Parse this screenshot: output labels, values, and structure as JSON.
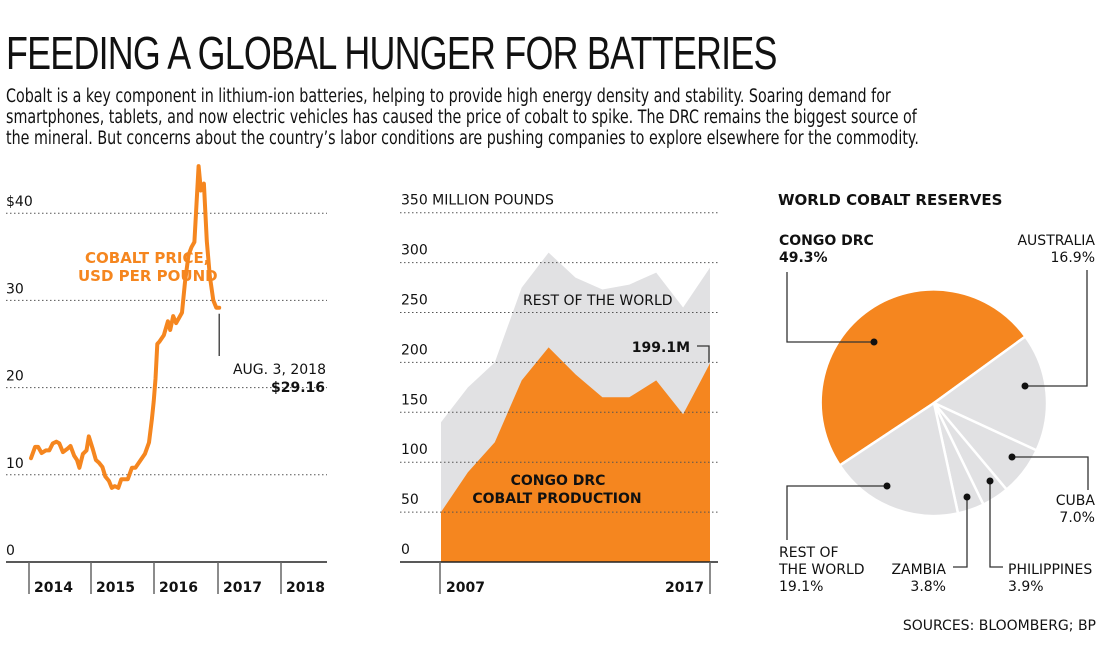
{
  "header": {
    "title": "FEEDING A GLOBAL HUNGER FOR BATTERIES",
    "intro_lines": [
      "Cobalt is a key component in lithium-ion batteries, helping to provide high energy density and stability. Soaring demand for",
      "smartphones, tablets, and now electric vehicles has caused the price of cobalt to spike. The DRC remains the biggest source of",
      "the mineral. But concerns about the country’s labor conditions are pushing companies to explore elsewhere for the commodity."
    ]
  },
  "colors": {
    "accent": "#f5861f",
    "rest": "#e1e1e3",
    "text": "#111111"
  },
  "chart_data": [
    {
      "type": "line",
      "title": "COBALT PRICE, USD PER POUND",
      "title_lines": [
        "COBALT PRICE,",
        "USD PER POUND"
      ],
      "xlabel": "",
      "ylabel": "",
      "ylim": [
        0,
        45
      ],
      "y_ticks": [
        0,
        10,
        20,
        30,
        40
      ],
      "y_tick_labels": [
        "0",
        "10",
        "20",
        "30",
        "$40"
      ],
      "x_tick_labels": [
        "2014",
        "2015",
        "2016",
        "2017",
        "2018"
      ],
      "xlim": [
        2013.7,
        2018.6
      ],
      "grid": true,
      "series": [
        {
          "name": "Cobalt price",
          "x": [
            2013.78,
            2013.85,
            2013.9,
            2013.96,
            2014.03,
            2014.09,
            2014.15,
            2014.21,
            2014.26,
            2014.32,
            2014.4,
            2014.45,
            2014.51,
            2014.56,
            2014.6,
            2014.66,
            2014.72,
            2014.76,
            2014.83,
            2014.88,
            2014.93,
            2014.99,
            2015.04,
            2015.1,
            2015.15,
            2015.2,
            2015.26,
            2015.31,
            2015.42,
            2015.49,
            2015.55,
            2015.63,
            2015.71,
            2015.78,
            2015.83,
            2015.86,
            2015.89,
            2015.92,
            2015.96,
            2016.03,
            2016.1,
            2016.14,
            2016.19,
            2016.24,
            2016.34,
            2016.39,
            2016.45,
            2016.5,
            2016.55,
            2016.62,
            2016.66,
            2016.71,
            2016.76,
            2016.81,
            2016.87,
            2016.92,
            2016.97
          ],
          "values": [
            11.9,
            13.2,
            13.2,
            12.5,
            12.8,
            12.8,
            13.6,
            13.8,
            13.6,
            12.6,
            13.0,
            13.3,
            12.2,
            11.7,
            10.8,
            12.4,
            12.8,
            14.4,
            12.9,
            11.7,
            11.4,
            10.9,
            9.8,
            9.3,
            8.5,
            8.7,
            8.5,
            9.5,
            9.5,
            10.8,
            10.8,
            11.6,
            12.4,
            13.7,
            16.4,
            18.4,
            21.0,
            25.0,
            25.3,
            26.0,
            27.6,
            26.6,
            28.2,
            27.4,
            28.6,
            32.1,
            35.2,
            36.1,
            36.7,
            45.4,
            42.6,
            43.4,
            36.8,
            32.8,
            30.0,
            29.16,
            29.16
          ]
        }
      ],
      "annotation": {
        "date": "AUG. 3, 2018",
        "value_label": "$29.16",
        "value": 29.16
      }
    },
    {
      "type": "area",
      "title": "",
      "ylabel": "MILLION POUNDS",
      "ylim": [
        0,
        350
      ],
      "y_ticks": [
        0,
        50,
        100,
        150,
        200,
        250,
        300,
        350
      ],
      "y_tick_labels": [
        "0",
        "50",
        "100",
        "150",
        "200",
        "250",
        "300",
        "350 MILLION POUNDS"
      ],
      "x": [
        2007,
        2008,
        2009,
        2010,
        2011,
        2012,
        2013,
        2014,
        2015,
        2016,
        2017
      ],
      "x_tick_labels": [
        "2007",
        "2017"
      ],
      "grid": true,
      "stacked": true,
      "series": [
        {
          "name": "CONGO DRC COBALT PRODUCTION",
          "label_lines": [
            "CONGO DRC",
            "COBALT PRODUCTION"
          ],
          "values": [
            50,
            90,
            120,
            182,
            215,
            188,
            165,
            165,
            182,
            148,
            199.1
          ]
        },
        {
          "name": "REST OF THE WORLD",
          "label_lines": [
            "REST OF THE WORLD"
          ],
          "values": [
            90,
            85,
            80,
            93,
            95,
            97,
            108,
            113,
            108,
            107,
            96
          ]
        }
      ],
      "totals": [
        140,
        175,
        200,
        275,
        310,
        285,
        273,
        278,
        290,
        255,
        295
      ],
      "annotation": {
        "label": "199.1M",
        "year": 2017,
        "value": 199.1
      }
    },
    {
      "type": "pie",
      "title": "WORLD COBALT RESERVES",
      "slices": [
        {
          "name": "CONGO DRC",
          "value": 49.3,
          "label": "49.3%",
          "highlight": true
        },
        {
          "name": "AUSTRALIA",
          "value": 16.9,
          "label": "16.9%",
          "highlight": false
        },
        {
          "name": "CUBA",
          "value": 7.0,
          "label": "7.0%",
          "highlight": false
        },
        {
          "name": "PHILIPPINES",
          "value": 3.9,
          "label": "3.9%",
          "highlight": false
        },
        {
          "name": "ZAMBIA",
          "value": 3.8,
          "label": "3.8%",
          "highlight": false
        },
        {
          "name": "REST OF THE WORLD",
          "label_lines": [
            "REST OF",
            "THE WORLD"
          ],
          "value": 19.1,
          "label": "19.1%",
          "highlight": false
        }
      ]
    }
  ],
  "footer": {
    "sources": "SOURCES: BLOOMBERG; BP"
  }
}
